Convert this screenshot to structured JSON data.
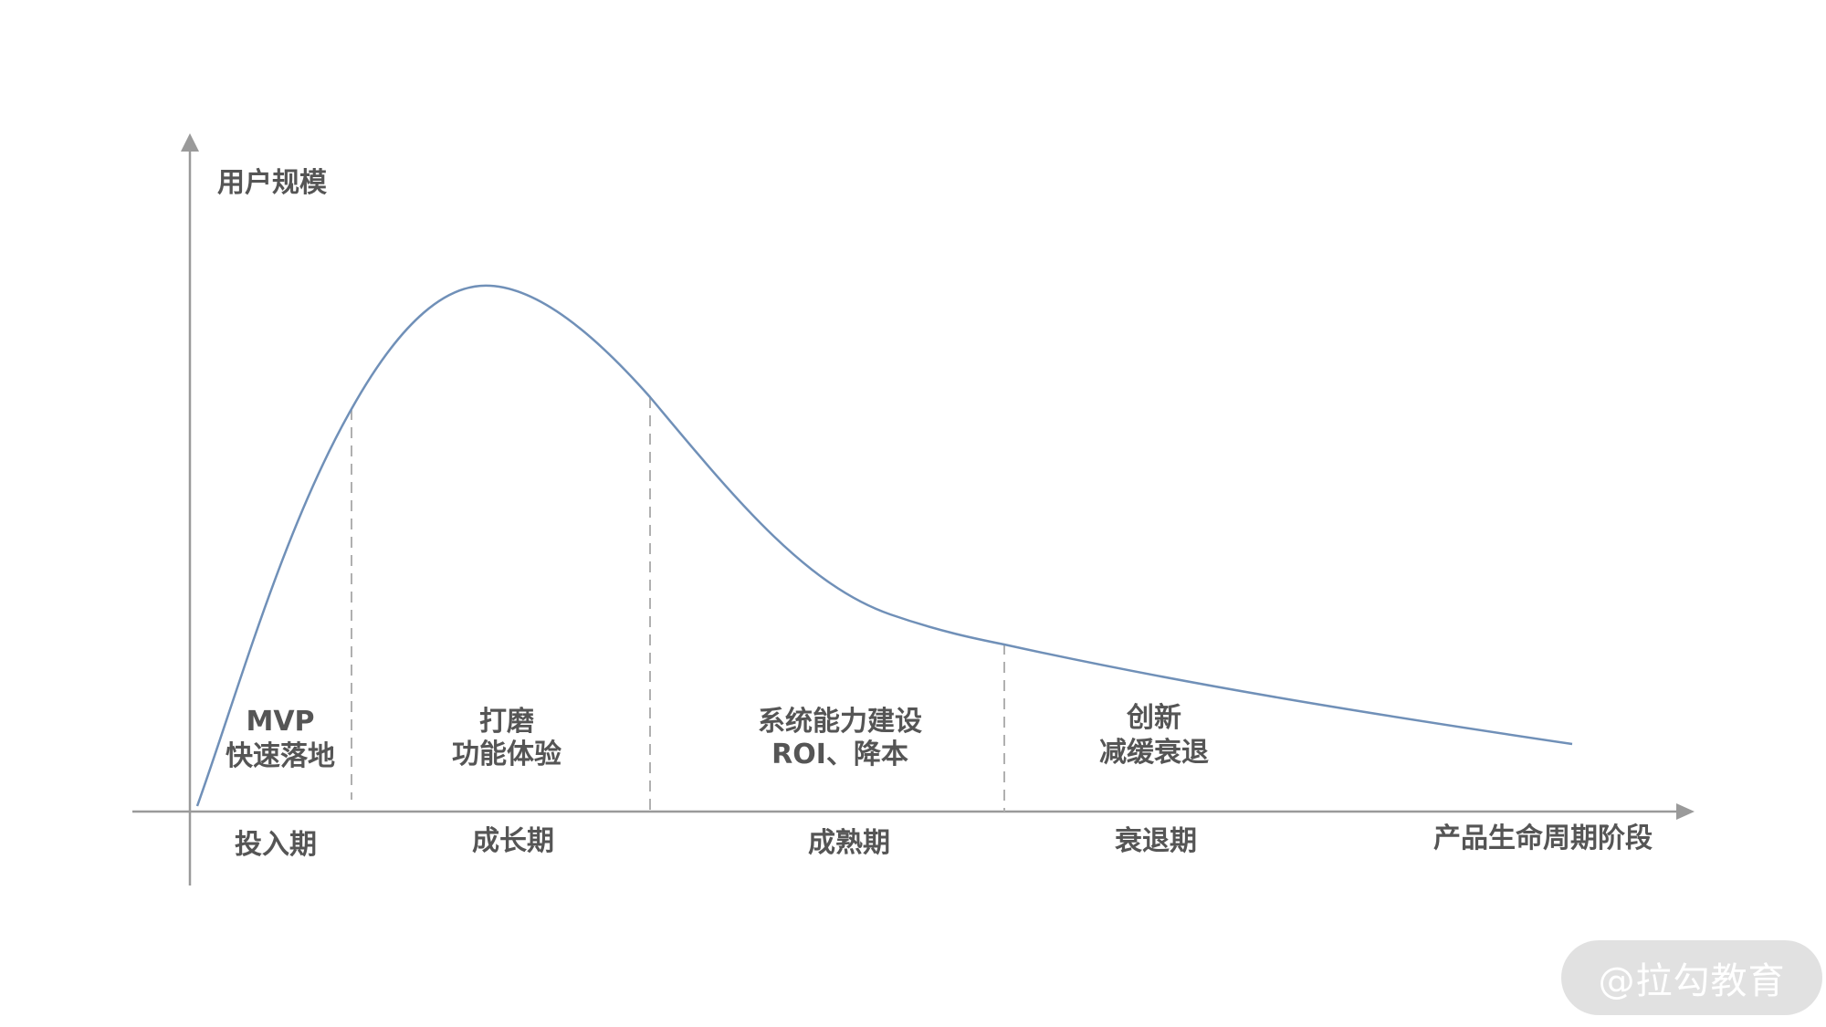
{
  "y_axis_label": "用户规模",
  "x_axis_label": "产品生命周期阶段",
  "stages": [
    {
      "name": "投入期",
      "description": [
        "MVP",
        "快速落地"
      ]
    },
    {
      "name": "成长期",
      "description": [
        "打磨",
        "功能体验"
      ]
    },
    {
      "name": "成熟期",
      "description": [
        "系统能力建设",
        "ROI、降本"
      ]
    },
    {
      "name": "衰退期",
      "description": [
        "创新",
        "减缓衰退"
      ]
    }
  ],
  "watermark": "@拉勾教育",
  "colors": {
    "curve": "#7090b8",
    "axis": "#9a9a9a",
    "divider": "#b0b0b0",
    "text": "#555555"
  }
}
